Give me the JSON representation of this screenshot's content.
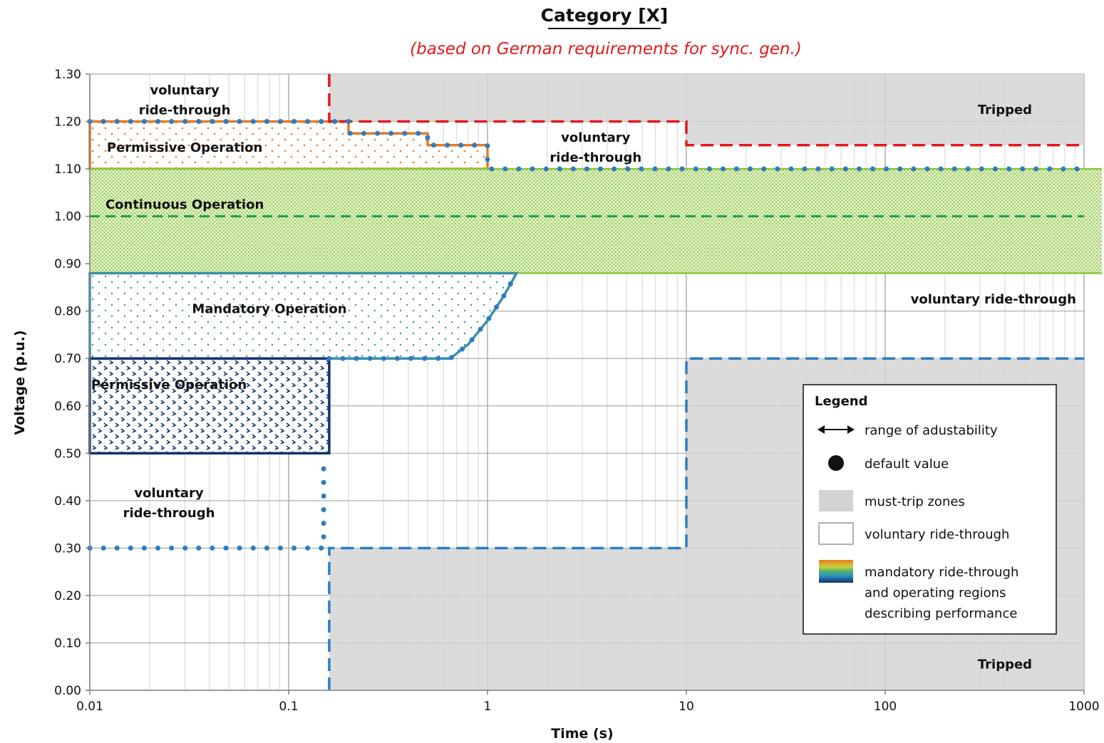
{
  "chart_data": {
    "type": "line",
    "title": "Category [X]",
    "subtitle": "(based on German requirements for sync. gen.)",
    "xlabel": "Time (s)",
    "ylabel": "Voltage (p.u.)",
    "xscale": "log",
    "xlim": [
      0.01,
      1000
    ],
    "ylim": [
      0,
      1.3
    ],
    "x_ticks": [
      "0.01",
      "0.1",
      "1",
      "10",
      "100",
      "1000"
    ],
    "y_ticks": [
      "0.00",
      "0.10",
      "0.20",
      "0.30",
      "0.40",
      "0.50",
      "0.60",
      "0.70",
      "0.80",
      "0.90",
      "1.00",
      "1.10",
      "1.20",
      "1.30"
    ],
    "grid": true,
    "colors": {
      "trip_zone": "#d3d3d3",
      "high_trip": "#e3191c",
      "low_trip": "#2e7dc2",
      "default_dots": "#2e7dc2",
      "continuous": "#8cc63f",
      "continuous_dash": "#1e9e4a",
      "permissive_high": "#e87a22",
      "mandatory": "#3a8fa8",
      "permissive_low": "#12336b"
    },
    "series": [
      {
        "name": "",
        "style": "red-dashed",
        "points": [
          [
            0.16,
            1.3
          ],
          [
            0.16,
            1.2
          ],
          [
            10,
            1.2
          ],
          [
            10,
            1.15
          ],
          [
            1000,
            1.15
          ]
        ]
      },
      {
        "name": "",
        "style": "blue-dashed",
        "points": [
          [
            0.16,
            0
          ],
          [
            0.16,
            0.3
          ],
          [
            10,
            0.3
          ],
          [
            10,
            0.7
          ],
          [
            1000,
            0.7
          ]
        ]
      },
      {
        "name": "",
        "style": "green-dashed",
        "points": [
          [
            0.01,
            1.0
          ],
          [
            1000,
            1.0
          ]
        ]
      },
      {
        "name": "",
        "style": "dotted-default",
        "points": [
          [
            0.01,
            1.2
          ],
          [
            0.2,
            1.2
          ],
          [
            0.2,
            1.175
          ],
          [
            0.5,
            1.175
          ],
          [
            0.5,
            1.15
          ],
          [
            1,
            1.15
          ],
          [
            1,
            1.1
          ],
          [
            1000,
            1.1
          ]
        ]
      },
      {
        "name": "",
        "style": "dotted-default",
        "points": [
          [
            0.16,
            0.7
          ],
          [
            0.65,
            0.7
          ],
          [
            0.8,
            0.73
          ],
          [
            1.0,
            0.78
          ],
          [
            1.2,
            0.83
          ],
          [
            1.4,
            0.88
          ]
        ]
      },
      {
        "name": "",
        "style": "dotted-default",
        "points": [
          [
            0.01,
            0.3
          ],
          [
            0.15,
            0.3
          ],
          [
            0.15,
            0.48
          ]
        ]
      }
    ],
    "regions": [
      {
        "label": "Permissive Operation",
        "style": "permissive-high",
        "points": [
          [
            0.01,
            1.1
          ],
          [
            0.01,
            1.2
          ],
          [
            0.2,
            1.2
          ],
          [
            0.2,
            1.175
          ],
          [
            0.5,
            1.175
          ],
          [
            0.5,
            1.15
          ],
          [
            1,
            1.15
          ],
          [
            1,
            1.1
          ]
        ]
      },
      {
        "label": "Continuous Operation",
        "style": "continuous",
        "points": [
          [
            0.01,
            0.88
          ],
          [
            0.01,
            1.1
          ],
          [
            1000,
            1.1
          ],
          [
            1000,
            0.88
          ]
        ]
      },
      {
        "label": "Mandatory Operation",
        "style": "mandatory",
        "points": [
          [
            0.01,
            0.7
          ],
          [
            0.01,
            0.88
          ],
          [
            1.4,
            0.88
          ],
          [
            1.2,
            0.83
          ],
          [
            1.0,
            0.78
          ],
          [
            0.8,
            0.73
          ],
          [
            0.65,
            0.7
          ]
        ]
      },
      {
        "label": "Permissive Operation",
        "style": "permissive-low",
        "points": [
          [
            0.01,
            0.5
          ],
          [
            0.01,
            0.7
          ],
          [
            0.16,
            0.7
          ],
          [
            0.16,
            0.5
          ]
        ]
      }
    ],
    "trip_zones": [
      {
        "points": [
          [
            0.16,
            1.2
          ],
          [
            0.16,
            1.3
          ],
          [
            1000,
            1.3
          ],
          [
            1000,
            1.15
          ],
          [
            10,
            1.15
          ],
          [
            10,
            1.2
          ]
        ]
      },
      {
        "points": [
          [
            0.16,
            0
          ],
          [
            0.16,
            0.3
          ],
          [
            10,
            0.3
          ],
          [
            10,
            0.7
          ],
          [
            1000,
            0.7
          ],
          [
            1000,
            0
          ]
        ]
      }
    ],
    "annotations": [
      {
        "lines": [
          "voluntary",
          "ride-through"
        ],
        "x": 0.03,
        "y": 1.245
      },
      {
        "lines": [
          "Tripped"
        ],
        "x": 400,
        "y": 1.225
      },
      {
        "lines": [
          "voluntary",
          "ride-through"
        ],
        "x": 3.5,
        "y": 1.145
      },
      {
        "lines": [
          "voluntary ride-through"
        ],
        "x": 350,
        "y": 0.825
      },
      {
        "lines": [
          "voluntary",
          "ride-through"
        ],
        "x": 0.025,
        "y": 0.395
      },
      {
        "lines": [
          "Tripped"
        ],
        "x": 400,
        "y": 0.055
      }
    ],
    "legend": {
      "title": "Legend",
      "position": "lower-right",
      "entries": [
        {
          "symbol": "double-arrow",
          "label": [
            "range of adustability"
          ]
        },
        {
          "symbol": "dot",
          "label": [
            "default value"
          ]
        },
        {
          "symbol": "gray-box",
          "label": [
            "must-trip zones"
          ]
        },
        {
          "symbol": "white-box",
          "label": [
            "voluntary ride-through"
          ]
        },
        {
          "symbol": "gradient-box",
          "label": [
            "mandatory ride-through",
            "and operating regions",
            "describing performance"
          ]
        }
      ]
    }
  }
}
